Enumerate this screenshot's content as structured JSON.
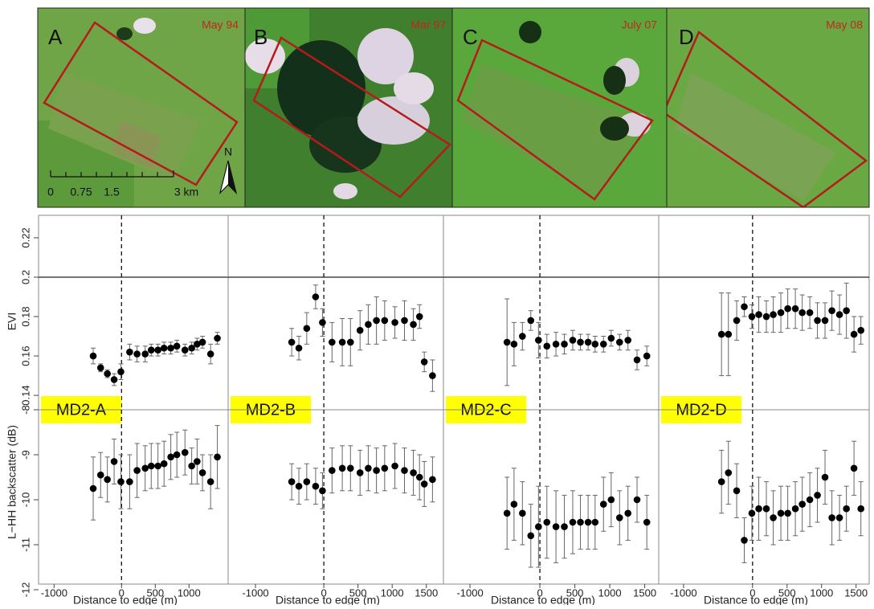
{
  "images": [
    {
      "label": "A",
      "date": "May 94"
    },
    {
      "label": "B",
      "date": "Mar 97"
    },
    {
      "label": "C",
      "date": "July 07"
    },
    {
      "label": "D",
      "date": "May 08"
    }
  ],
  "scale_bar": [
    "0",
    "0.75",
    "1.5",
    "3 km"
  ],
  "north": "N",
  "chart_data": [
    {
      "type": "scatter",
      "label": "MD2-A",
      "ylabel": "EVI",
      "ylim": [
        0.1327,
        0.2314
      ],
      "yticks": [
        0.14,
        0.16,
        0.18,
        0.2,
        0.22
      ],
      "hline": 0.2,
      "vline": 0,
      "xlim": [
        -1230,
        1580
      ],
      "x": [
        -420,
        -310,
        -210,
        -110,
        -10,
        120,
        230,
        350,
        440,
        540,
        630,
        730,
        820,
        940,
        1040,
        1120,
        1200,
        1320,
        1420
      ],
      "values": [
        0.16,
        0.154,
        0.151,
        0.148,
        0.152,
        0.162,
        0.161,
        0.161,
        0.163,
        0.163,
        0.164,
        0.164,
        0.165,
        0.163,
        0.164,
        0.166,
        0.167,
        0.161,
        0.169
      ],
      "errors": [
        0.004,
        0.002,
        0.002,
        0.003,
        0.004,
        0.004,
        0.004,
        0.004,
        0.003,
        0.003,
        0.003,
        0.003,
        0.003,
        0.003,
        0.003,
        0.003,
        0.003,
        0.005,
        0.003
      ]
    },
    {
      "type": "scatter",
      "label": "MD2-B",
      "ylim": [
        0.1327,
        0.2314
      ],
      "hline": 0.2,
      "vline": 0,
      "xlim": [
        -1400,
        1750
      ],
      "x": [
        -470,
        -365,
        -250,
        -120,
        -20,
        120,
        270,
        390,
        530,
        650,
        770,
        890,
        1040,
        1180,
        1310,
        1400,
        1470,
        1590
      ],
      "values": [
        0.167,
        0.164,
        0.174,
        0.19,
        0.177,
        0.167,
        0.167,
        0.167,
        0.173,
        0.176,
        0.178,
        0.178,
        0.177,
        0.178,
        0.176,
        0.18,
        0.157,
        0.15
      ],
      "errors": [
        0.007,
        0.006,
        0.008,
        0.006,
        0.007,
        0.01,
        0.012,
        0.012,
        0.01,
        0.01,
        0.012,
        0.01,
        0.008,
        0.01,
        0.008,
        0.006,
        0.005,
        0.008
      ]
    },
    {
      "type": "scatter",
      "label": "MD2-C",
      "ylim": [
        0.1327,
        0.2314
      ],
      "hline": 0.2,
      "vline": 0,
      "xlim": [
        -1380,
        1700
      ],
      "x": [
        -470,
        -370,
        -250,
        -130,
        -20,
        100,
        230,
        350,
        470,
        580,
        690,
        790,
        910,
        1020,
        1140,
        1260,
        1390,
        1530
      ],
      "values": [
        0.167,
        0.166,
        0.17,
        0.178,
        0.168,
        0.165,
        0.166,
        0.166,
        0.168,
        0.167,
        0.167,
        0.166,
        0.166,
        0.169,
        0.167,
        0.168,
        0.158,
        0.16
      ],
      "errors": [
        0.022,
        0.011,
        0.007,
        0.005,
        0.009,
        0.006,
        0.006,
        0.005,
        0.005,
        0.004,
        0.004,
        0.004,
        0.004,
        0.004,
        0.004,
        0.005,
        0.005,
        0.005
      ]
    },
    {
      "type": "scatter",
      "label": "MD2-D",
      "ylim": [
        0.1327,
        0.2314
      ],
      "hline": 0.2,
      "vline": 0,
      "xlim": [
        -1360,
        1690
      ],
      "x": [
        -450,
        -350,
        -230,
        -120,
        -10,
        90,
        200,
        300,
        410,
        510,
        620,
        720,
        830,
        940,
        1050,
        1150,
        1260,
        1360,
        1470,
        1570
      ],
      "values": [
        0.171,
        0.171,
        0.178,
        0.185,
        0.18,
        0.181,
        0.18,
        0.181,
        0.182,
        0.184,
        0.184,
        0.182,
        0.182,
        0.178,
        0.178,
        0.183,
        0.181,
        0.183,
        0.171,
        0.173
      ],
      "errors": [
        0.021,
        0.021,
        0.01,
        0.005,
        0.006,
        0.009,
        0.008,
        0.009,
        0.01,
        0.01,
        0.01,
        0.009,
        0.008,
        0.009,
        0.009,
        0.01,
        0.01,
        0.014,
        0.009,
        0.007
      ]
    },
    {
      "type": "scatter",
      "ylabel": "L−HH backscatter (dB)",
      "xlabel": "Distance to edge (m)",
      "ylim": [
        -11.875,
        -8
      ],
      "yticks": [
        -12,
        -11,
        -10,
        -9,
        -8
      ],
      "vline": 0,
      "xlim": [
        -1230,
        1580
      ],
      "xticks": [
        -1000,
        0,
        500,
        1000
      ],
      "x": [
        -420,
        -310,
        -210,
        -110,
        -10,
        120,
        230,
        350,
        440,
        540,
        630,
        730,
        820,
        940,
        1040,
        1120,
        1200,
        1320,
        1420
      ],
      "values": [
        -9.75,
        -9.45,
        -9.55,
        -9.15,
        -9.6,
        -9.6,
        -9.35,
        -9.3,
        -9.25,
        -9.25,
        -9.2,
        -9.05,
        -9.0,
        -8.95,
        -9.25,
        -9.15,
        -9.4,
        -9.6,
        -9.05
      ],
      "errors": [
        0.7,
        0.5,
        0.5,
        0.5,
        0.6,
        0.6,
        0.6,
        0.5,
        0.5,
        0.5,
        0.5,
        0.5,
        0.5,
        0.5,
        0.4,
        0.5,
        0.4,
        0.6,
        0.7
      ]
    },
    {
      "type": "scatter",
      "xlabel": "Distance to edge (m)",
      "ylim": [
        -11.875,
        -8
      ],
      "vline": 0,
      "xlim": [
        -1400,
        1750
      ],
      "xticks": [
        -1000,
        0,
        500,
        1000,
        1500
      ],
      "x": [
        -470,
        -365,
        -250,
        -120,
        -20,
        120,
        270,
        390,
        530,
        650,
        770,
        890,
        1040,
        1180,
        1310,
        1400,
        1470,
        1590
      ],
      "values": [
        -9.6,
        -9.7,
        -9.6,
        -9.7,
        -9.8,
        -9.35,
        -9.3,
        -9.3,
        -9.4,
        -9.3,
        -9.35,
        -9.3,
        -9.25,
        -9.35,
        -9.4,
        -9.5,
        -9.65,
        -9.55
      ],
      "errors": [
        0.4,
        0.4,
        0.4,
        0.4,
        0.4,
        0.5,
        0.5,
        0.5,
        0.5,
        0.5,
        0.5,
        0.5,
        0.5,
        0.5,
        0.5,
        0.5,
        0.5,
        0.5
      ]
    },
    {
      "type": "scatter",
      "xlabel": "Distance to edge (m)",
      "ylim": [
        -11.875,
        -8
      ],
      "vline": 0,
      "xlim": [
        -1380,
        1700
      ],
      "xticks": [
        -1000,
        0,
        500,
        1000,
        1500
      ],
      "x": [
        -470,
        -370,
        -250,
        -130,
        -20,
        100,
        230,
        350,
        470,
        580,
        690,
        790,
        910,
        1020,
        1140,
        1260,
        1390,
        1530
      ],
      "values": [
        -10.3,
        -10.1,
        -10.3,
        -10.8,
        -10.6,
        -10.5,
        -10.6,
        -10.6,
        -10.5,
        -10.5,
        -10.5,
        -10.5,
        -10.1,
        -10.0,
        -10.4,
        -10.3,
        -10.0,
        -10.5
      ],
      "errors": [
        0.8,
        0.8,
        0.7,
        0.7,
        0.9,
        0.8,
        0.8,
        0.7,
        0.7,
        0.6,
        0.6,
        0.6,
        0.6,
        0.6,
        0.6,
        0.6,
        0.5,
        0.6
      ]
    },
    {
      "type": "scatter",
      "xlabel": "Distance to edge (m)",
      "ylim": [
        -11.875,
        -8
      ],
      "vline": 0,
      "xlim": [
        -1360,
        1690
      ],
      "xticks": [
        -1000,
        0,
        500,
        1000,
        1500
      ],
      "x": [
        -450,
        -350,
        -230,
        -120,
        -10,
        90,
        200,
        300,
        410,
        510,
        620,
        720,
        830,
        940,
        1050,
        1150,
        1260,
        1360,
        1470,
        1570
      ],
      "values": [
        -9.6,
        -9.4,
        -9.8,
        -10.9,
        -10.3,
        -10.2,
        -10.2,
        -10.4,
        -10.3,
        -10.3,
        -10.2,
        -10.1,
        -10.0,
        -9.9,
        -9.5,
        -10.4,
        -10.4,
        -10.2,
        -9.3,
        -10.2
      ],
      "errors": [
        0.7,
        0.7,
        0.6,
        0.5,
        0.6,
        0.7,
        0.6,
        0.6,
        0.6,
        0.6,
        0.6,
        0.6,
        0.6,
        0.6,
        0.6,
        0.6,
        0.5,
        0.5,
        0.6,
        0.6
      ]
    }
  ]
}
